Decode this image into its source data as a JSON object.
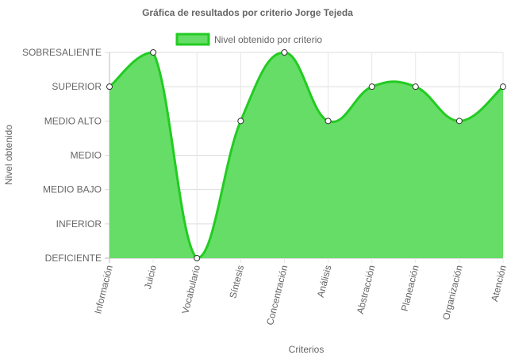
{
  "chart_data": {
    "type": "area",
    "title": "Gráfica de resultados por criterio Jorge Tejeda",
    "xlabel": "Criterios",
    "ylabel": "Nivel obtenido",
    "legend_position": "top",
    "y_levels": [
      "DEFICIENTE",
      "INFERIOR",
      "MEDIO BAJO",
      "MEDIO",
      "MEDIO ALTO",
      "SUPERIOR",
      "SOBRESALIENTE"
    ],
    "ylim": [
      0,
      6
    ],
    "categories": [
      "Información",
      "Juicio",
      "Vocabulario",
      "Síntesis",
      "Concentración",
      "Análisis",
      "Abstracción",
      "Planeación",
      "Organización",
      "Atención"
    ],
    "series": [
      {
        "name": "Nivel obtenido por criterio",
        "values": [
          5,
          6,
          0,
          4,
          6,
          4,
          5,
          5,
          4,
          5
        ],
        "fill_color": "#66dd66",
        "line_color": "#22cc22"
      }
    ],
    "grid": true
  }
}
